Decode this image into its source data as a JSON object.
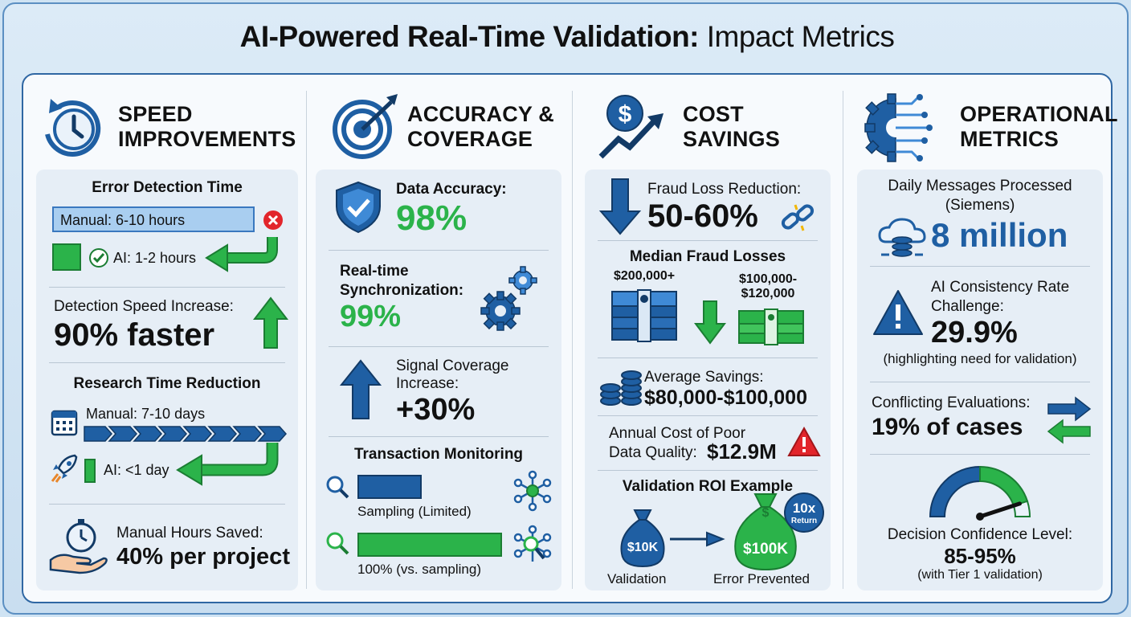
{
  "title": {
    "bold": "AI-Powered Real-Time Validation:",
    "rest": " Impact Metrics"
  },
  "colors": {
    "primary": "#1f5fa3",
    "accent_green": "#2bb34a",
    "alert_red": "#e2252b",
    "panel_border": "#2f67a3"
  },
  "speed": {
    "heading": [
      "SPEED",
      "IMPROVEMENTS"
    ],
    "icon": "stopwatch-refresh-icon",
    "error_detection": {
      "title": "Error Detection Time",
      "manual": "Manual: 6-10 hours",
      "ai": "AI: 1-2 hours"
    },
    "detection_speed": {
      "label": "Detection Speed Increase:",
      "value": "90% faster"
    },
    "research": {
      "title": "Research Time Reduction",
      "manual": "Manual: 7-10 days",
      "ai": "AI: <1 day"
    },
    "hours_saved": {
      "label": "Manual Hours Saved:",
      "value": "40% per project"
    }
  },
  "accuracy": {
    "heading": [
      "ACCURACY &",
      "COVERAGE"
    ],
    "icon": "target-arrow-icon",
    "data_accuracy": {
      "label": "Data Accuracy:",
      "value": "98%"
    },
    "sync": {
      "label1": "Real-time",
      "label2": "Synchronization:",
      "value": "99%"
    },
    "signal": {
      "label1": "Signal Coverage",
      "label2": "Increase:",
      "value": "+30%"
    },
    "monitoring": {
      "title": "Transaction Monitoring",
      "sampling": "Sampling (Limited)",
      "full": "100% (vs. sampling)"
    }
  },
  "cost": {
    "heading": [
      "COST",
      "SAVINGS"
    ],
    "icon": "dollar-growth-icon",
    "fraud_reduction": {
      "label": "Fraud Loss Reduction:",
      "value": "50-60%"
    },
    "median": {
      "title": "Median Fraud Losses",
      "before": "$200,000+",
      "after1": "$100,000-",
      "after2": "$120,000"
    },
    "avg_savings": {
      "label": "Average Savings:",
      "value": "$80,000-$100,000"
    },
    "poor_quality": {
      "label1": "Annual Cost of Poor",
      "label2": "Data Quality:",
      "value": "$12.9M"
    },
    "roi": {
      "title": "Validation ROI Example",
      "bag_small": "$10K",
      "bag_large": "$100K",
      "validation": "Validation",
      "prevented": "Error Prevented",
      "badge_big": "10x",
      "badge_small": "Return"
    }
  },
  "ops": {
    "heading": [
      "OPERATIONAL",
      "METRICS"
    ],
    "icon": "gear-circuit-icon",
    "messages": {
      "label1": "Daily Messages Processed",
      "label2": "(Siemens)",
      "value": "8 million"
    },
    "consistency": {
      "label1": "AI Consistency Rate",
      "label2": "Challenge:",
      "value": "29.9%",
      "note": "(highlighting need for validation)"
    },
    "conflicting": {
      "label": "Conflicting Evaluations:",
      "value": "19% of cases"
    },
    "confidence": {
      "label": "Decision Confidence Level:",
      "value": "85-95%",
      "note": "(with Tier 1 validation)",
      "gauge_level_pct": 90
    }
  }
}
